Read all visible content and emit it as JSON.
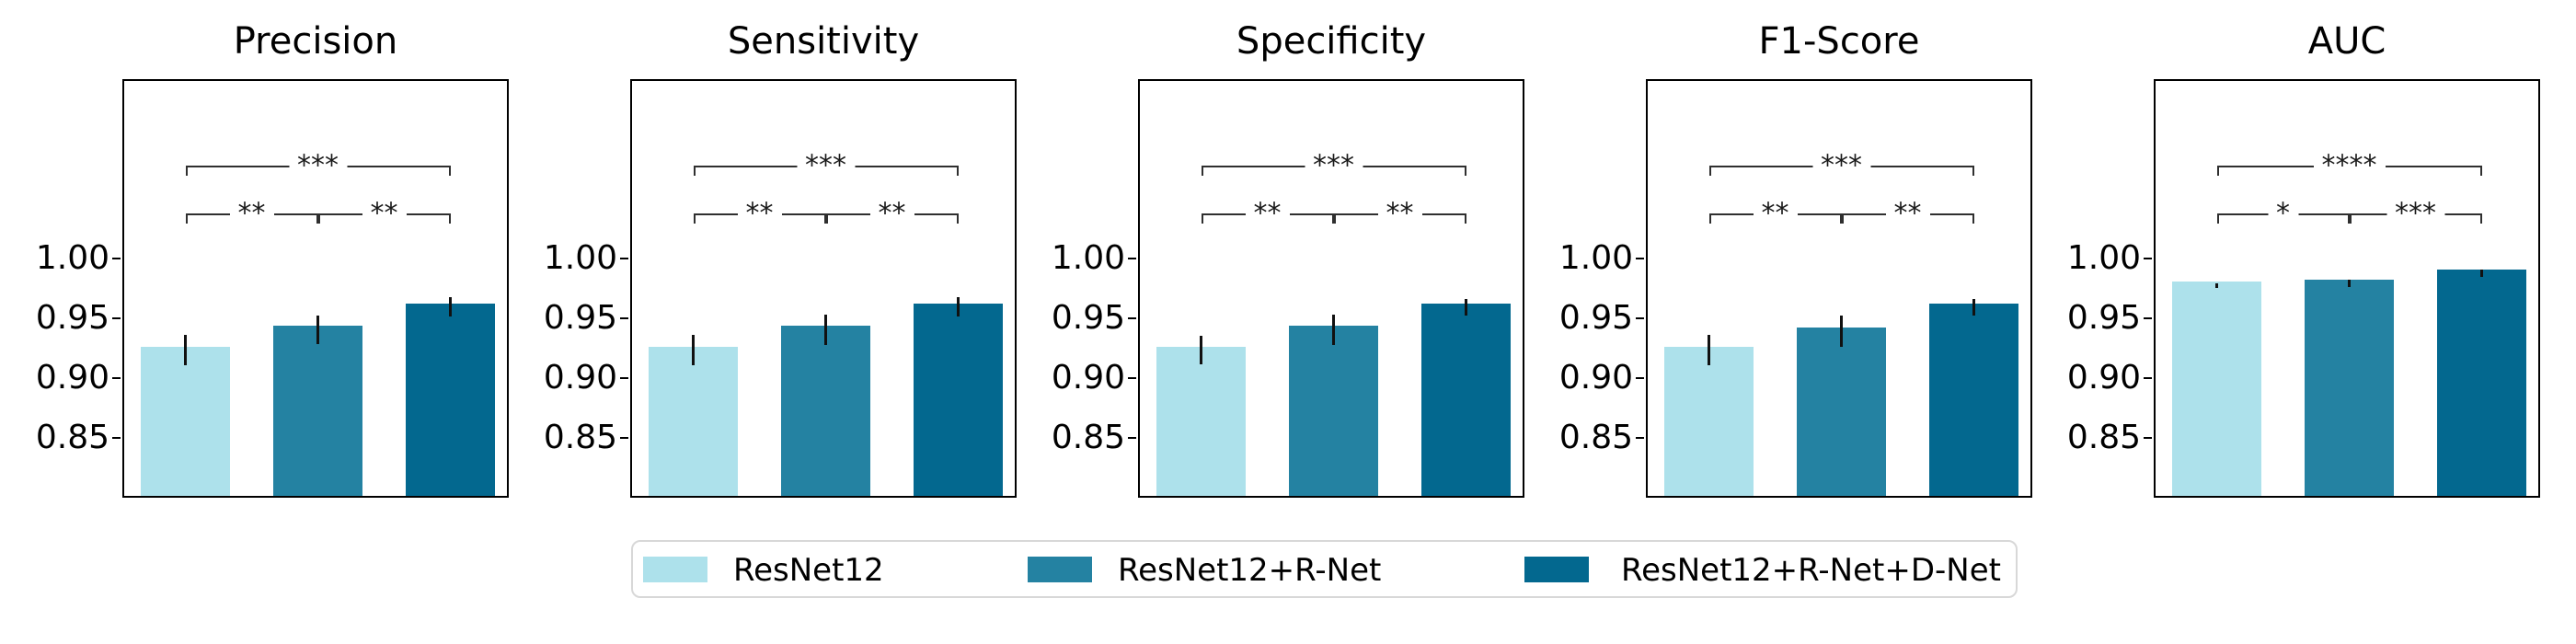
{
  "figure": {
    "background": "#ffffff"
  },
  "palette": {
    "bar_colors": [
      "#ade1eb",
      "#2482a2",
      "#03688f"
    ],
    "error_bar_color": "#111111",
    "bracket_color": "#2f2f2f",
    "axis_color": "#000000",
    "legend_border_color": "#d8d8d8",
    "text_color": "#000000"
  },
  "legend": {
    "labels": [
      "ResNet12",
      "ResNet12+R-Net",
      "ResNet12+R-Net+D-Net"
    ]
  },
  "chart_data": {
    "type": "bar",
    "categories": [
      "ResNet12",
      "ResNet12+R-Net",
      "ResNet12+R-Net+D-Net"
    ],
    "ylim": [
      0.8,
      1.15
    ],
    "yticks": [
      {
        "label": "1.00",
        "value": 1.0
      },
      {
        "label": "0.95",
        "value": 0.95
      },
      {
        "label": "0.90",
        "value": 0.9
      },
      {
        "label": "0.85",
        "value": 0.85
      }
    ],
    "grid": false,
    "legend_position": "bottom-center",
    "subplots": [
      {
        "title": "Precision",
        "values": [
          0.925,
          0.942,
          0.961
        ],
        "errors": [
          0.013,
          0.012,
          0.008
        ],
        "significance": [
          {
            "pair": [
              0,
              1
            ],
            "label": "**"
          },
          {
            "pair": [
              1,
              2
            ],
            "label": "**"
          },
          {
            "pair": [
              0,
              2
            ],
            "label": "***"
          }
        ]
      },
      {
        "title": "Sensitivity",
        "values": [
          0.925,
          0.942,
          0.961
        ],
        "errors": [
          0.013,
          0.013,
          0.008
        ],
        "significance": [
          {
            "pair": [
              0,
              1
            ],
            "label": "**"
          },
          {
            "pair": [
              1,
              2
            ],
            "label": "**"
          },
          {
            "pair": [
              0,
              2
            ],
            "label": "***"
          }
        ]
      },
      {
        "title": "Specificity",
        "values": [
          0.925,
          0.942,
          0.961
        ],
        "errors": [
          0.012,
          0.013,
          0.007
        ],
        "significance": [
          {
            "pair": [
              0,
              1
            ],
            "label": "**"
          },
          {
            "pair": [
              1,
              2
            ],
            "label": "**"
          },
          {
            "pair": [
              0,
              2
            ],
            "label": "***"
          }
        ]
      },
      {
        "title": "F1-Score",
        "values": [
          0.925,
          0.941,
          0.961
        ],
        "errors": [
          0.013,
          0.013,
          0.007
        ],
        "significance": [
          {
            "pair": [
              0,
              1
            ],
            "label": "**"
          },
          {
            "pair": [
              1,
              2
            ],
            "label": "**"
          },
          {
            "pair": [
              0,
              2
            ],
            "label": "***"
          }
        ]
      },
      {
        "title": "AUC",
        "values": [
          0.979,
          0.981,
          0.989
        ],
        "errors": [
          0.002,
          0.003,
          0.003
        ],
        "significance": [
          {
            "pair": [
              0,
              1
            ],
            "label": "*"
          },
          {
            "pair": [
              1,
              2
            ],
            "label": "***"
          },
          {
            "pair": [
              0,
              2
            ],
            "label": "****"
          }
        ]
      }
    ]
  }
}
